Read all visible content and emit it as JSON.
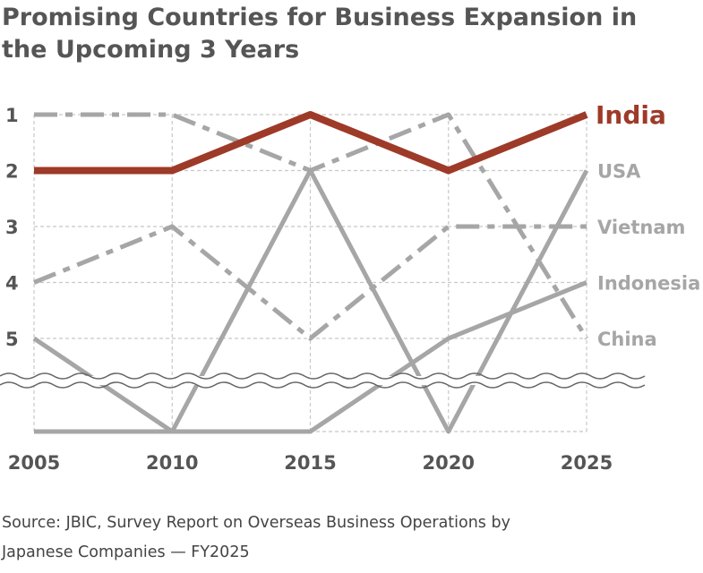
{
  "title_lines": [
    "Promising Countries for Business Expansion in",
    "the Upcoming 3 Years"
  ],
  "source_lines": [
    "Source: JBIC, Survey Report on Overseas Business Operations by",
    "Japanese Companies — FY2025"
  ],
  "colors": {
    "india": "#9e3a28",
    "other": "#a6a6a6",
    "axis_text": "#555555",
    "grid": "#c8c8c8",
    "break": "#666666"
  },
  "chart_data": {
    "type": "line",
    "title": "Promising Countries for Business Expansion in the Upcoming 3 Years",
    "x": [
      2005,
      2010,
      2015,
      2020,
      2025
    ],
    "x_tick_labels": [
      "2005",
      "2010",
      "2015",
      "2020",
      "2025"
    ],
    "y_tick_labels": [
      "1",
      "2",
      "3",
      "4",
      "5"
    ],
    "y_axis": "rank, inverted (1 at top)",
    "axis_break": "wavy break below rank 5; values at the bottom line are outside the top 5",
    "grid": true,
    "legend": "direct labels at right end of lines",
    "series": [
      {
        "name": "India",
        "ranks": [
          2,
          2,
          1,
          2,
          1
        ],
        "style": "solid-thick",
        "highlight": true
      },
      {
        "name": "USA",
        "ranks": [
          5,
          null,
          2,
          null,
          2
        ],
        "style": "solid"
      },
      {
        "name": "Vietnam",
        "ranks": [
          4,
          3,
          5,
          3,
          3
        ],
        "style": "dash-dot"
      },
      {
        "name": "Indonesia",
        "ranks": [
          null,
          null,
          null,
          5,
          4
        ],
        "style": "solid"
      },
      {
        "name": "China",
        "ranks": [
          1,
          1,
          2,
          1,
          5
        ],
        "style": "dash-dot"
      }
    ]
  }
}
